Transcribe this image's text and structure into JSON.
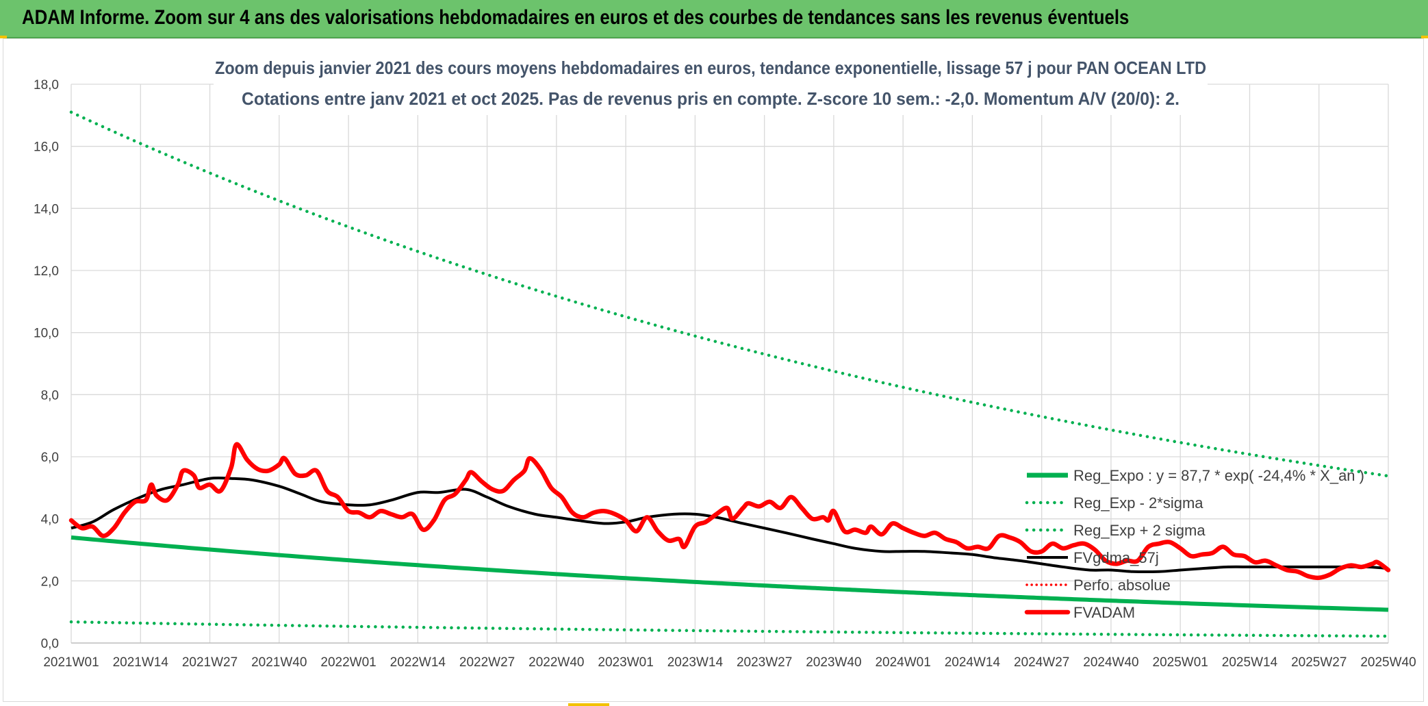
{
  "header": {
    "title": "ADAM Informe. Zoom sur 4 ans des valorisations hebdomadaires en euros et des courbes de tendances sans les revenus éventuels"
  },
  "colors": {
    "header_bg": "#6cc36c",
    "trend_green": "#00b050",
    "price_red": "#ff0000",
    "smooth_black": "#000000",
    "accent_yellow": "#f2c200"
  },
  "chart_data": {
    "type": "line",
    "title_line1": "Zoom depuis janvier 2021 des cours moyens hebdomadaires en euros, tendance exponentielle, lissage 57 j pour PAN OCEAN LTD",
    "title_line2": "Cotations entre janv 2021 et oct 2025. Pas de revenus pris en compte. Z-score 10 sem.: -2,0. Momentum A/V (20/0): 2.",
    "ylim": [
      0,
      18
    ],
    "y_ticks": [
      "0,0",
      "2,0",
      "4,0",
      "6,0",
      "8,0",
      "10,0",
      "12,0",
      "14,0",
      "16,0",
      "18,0"
    ],
    "x_ticks": [
      "2021W01",
      "2021W14",
      "2021W27",
      "2021W40",
      "2022W01",
      "2022W14",
      "2022W27",
      "2022W40",
      "2023W01",
      "2023W14",
      "2023W27",
      "2023W40",
      "2024W01",
      "2024W14",
      "2024W27",
      "2024W40",
      "2025W01",
      "2025W14",
      "2025W27",
      "2025W40"
    ],
    "x_range_weeks": [
      0,
      247
    ],
    "legend": [
      {
        "label": "Reg_Expo : y = 87,7 * exp( -24,4% *  X_an )",
        "style": "solid-green"
      },
      {
        "label": "Reg_Exp - 2*sigma",
        "style": "dotted-green"
      },
      {
        "label": "Reg_Exp + 2 sigma",
        "style": "dotted-green"
      },
      {
        "label": "FVgdma_57j",
        "style": "solid-black"
      },
      {
        "label": "Perfo. absolue",
        "style": "dotted-red"
      },
      {
        "label": "FVADAM",
        "style": "solid-red"
      }
    ],
    "series": [
      {
        "name": "Reg_Expo",
        "style": "solid-green",
        "points": [
          [
            0,
            3.4
          ],
          [
            247,
            1.07
          ]
        ]
      },
      {
        "name": "Reg_Exp - 2*sigma",
        "style": "dotted-green",
        "points": [
          [
            0,
            0.68
          ],
          [
            247,
            0.22
          ]
        ]
      },
      {
        "name": "Reg_Exp + 2 sigma",
        "style": "dotted-green",
        "points": [
          [
            0,
            17.1
          ],
          [
            247,
            5.38
          ]
        ]
      },
      {
        "name": "FVgdma_57j",
        "style": "solid-black",
        "points": [
          [
            0,
            3.7
          ],
          [
            4,
            3.9
          ],
          [
            8,
            4.3
          ],
          [
            13,
            4.7
          ],
          [
            17,
            4.95
          ],
          [
            21,
            5.1
          ],
          [
            26,
            5.3
          ],
          [
            30,
            5.3
          ],
          [
            34,
            5.25
          ],
          [
            39,
            5.05
          ],
          [
            43,
            4.8
          ],
          [
            47,
            4.55
          ],
          [
            52,
            4.45
          ],
          [
            56,
            4.45
          ],
          [
            60,
            4.6
          ],
          [
            65,
            4.85
          ],
          [
            69,
            4.85
          ],
          [
            74,
            4.95
          ],
          [
            78,
            4.7
          ],
          [
            82,
            4.4
          ],
          [
            87,
            4.15
          ],
          [
            91,
            4.05
          ],
          [
            95,
            3.95
          ],
          [
            100,
            3.85
          ],
          [
            104,
            3.9
          ],
          [
            108,
            4.05
          ],
          [
            113,
            4.15
          ],
          [
            117,
            4.15
          ],
          [
            121,
            4.05
          ],
          [
            126,
            3.85
          ],
          [
            130,
            3.7
          ],
          [
            134,
            3.55
          ],
          [
            139,
            3.35
          ],
          [
            143,
            3.2
          ],
          [
            147,
            3.05
          ],
          [
            152,
            2.95
          ],
          [
            156,
            2.95
          ],
          [
            160,
            2.95
          ],
          [
            165,
            2.9
          ],
          [
            169,
            2.85
          ],
          [
            173,
            2.75
          ],
          [
            178,
            2.65
          ],
          [
            182,
            2.55
          ],
          [
            186,
            2.45
          ],
          [
            191,
            2.35
          ],
          [
            195,
            2.35
          ],
          [
            199,
            2.3
          ],
          [
            204,
            2.3
          ],
          [
            208,
            2.35
          ],
          [
            212,
            2.4
          ],
          [
            217,
            2.45
          ],
          [
            221,
            2.45
          ],
          [
            225,
            2.45
          ],
          [
            230,
            2.45
          ],
          [
            234,
            2.45
          ],
          [
            238,
            2.45
          ],
          [
            243,
            2.45
          ],
          [
            247,
            2.4
          ]
        ]
      },
      {
        "name": "FVADAM",
        "style": "solid-red",
        "points": [
          [
            0,
            3.95
          ],
          [
            2,
            3.7
          ],
          [
            4,
            3.75
          ],
          [
            6,
            3.45
          ],
          [
            8,
            3.7
          ],
          [
            10,
            4.2
          ],
          [
            12,
            4.55
          ],
          [
            14,
            4.6
          ],
          [
            15,
            5.1
          ],
          [
            16,
            4.75
          ],
          [
            18,
            4.6
          ],
          [
            20,
            5.1
          ],
          [
            21,
            5.55
          ],
          [
            23,
            5.4
          ],
          [
            24,
            5.0
          ],
          [
            26,
            5.1
          ],
          [
            28,
            4.9
          ],
          [
            30,
            5.65
          ],
          [
            31,
            6.4
          ],
          [
            33,
            5.9
          ],
          [
            35,
            5.6
          ],
          [
            37,
            5.55
          ],
          [
            39,
            5.75
          ],
          [
            40,
            5.95
          ],
          [
            42,
            5.45
          ],
          [
            44,
            5.4
          ],
          [
            46,
            5.55
          ],
          [
            48,
            4.9
          ],
          [
            50,
            4.7
          ],
          [
            52,
            4.25
          ],
          [
            54,
            4.2
          ],
          [
            56,
            4.05
          ],
          [
            58,
            4.25
          ],
          [
            60,
            4.15
          ],
          [
            62,
            4.05
          ],
          [
            64,
            4.15
          ],
          [
            66,
            3.65
          ],
          [
            68,
            3.95
          ],
          [
            70,
            4.6
          ],
          [
            72,
            4.8
          ],
          [
            74,
            5.25
          ],
          [
            75,
            5.5
          ],
          [
            77,
            5.2
          ],
          [
            79,
            4.95
          ],
          [
            81,
            4.9
          ],
          [
            83,
            5.25
          ],
          [
            85,
            5.55
          ],
          [
            86,
            5.95
          ],
          [
            88,
            5.6
          ],
          [
            90,
            5.0
          ],
          [
            92,
            4.7
          ],
          [
            94,
            4.2
          ],
          [
            96,
            4.05
          ],
          [
            98,
            4.2
          ],
          [
            100,
            4.25
          ],
          [
            102,
            4.15
          ],
          [
            104,
            3.95
          ],
          [
            106,
            3.6
          ],
          [
            108,
            4.05
          ],
          [
            110,
            3.6
          ],
          [
            112,
            3.3
          ],
          [
            114,
            3.35
          ],
          [
            115,
            3.1
          ],
          [
            117,
            3.75
          ],
          [
            119,
            3.9
          ],
          [
            121,
            4.15
          ],
          [
            123,
            4.35
          ],
          [
            124,
            4.0
          ],
          [
            126,
            4.35
          ],
          [
            127,
            4.5
          ],
          [
            129,
            4.4
          ],
          [
            131,
            4.55
          ],
          [
            133,
            4.35
          ],
          [
            135,
            4.7
          ],
          [
            137,
            4.35
          ],
          [
            139,
            4.0
          ],
          [
            141,
            4.05
          ],
          [
            142,
            3.95
          ],
          [
            143,
            4.25
          ],
          [
            145,
            3.6
          ],
          [
            147,
            3.65
          ],
          [
            149,
            3.55
          ],
          [
            150,
            3.75
          ],
          [
            152,
            3.5
          ],
          [
            154,
            3.85
          ],
          [
            156,
            3.7
          ],
          [
            158,
            3.55
          ],
          [
            160,
            3.45
          ],
          [
            162,
            3.55
          ],
          [
            164,
            3.35
          ],
          [
            166,
            3.25
          ],
          [
            168,
            3.05
          ],
          [
            170,
            3.1
          ],
          [
            172,
            3.05
          ],
          [
            174,
            3.45
          ],
          [
            176,
            3.4
          ],
          [
            178,
            3.25
          ],
          [
            180,
            2.95
          ],
          [
            182,
            2.95
          ],
          [
            184,
            3.2
          ],
          [
            186,
            3.05
          ],
          [
            188,
            3.15
          ],
          [
            190,
            3.2
          ],
          [
            192,
            3.0
          ],
          [
            194,
            2.65
          ],
          [
            196,
            2.55
          ],
          [
            198,
            2.65
          ],
          [
            200,
            2.65
          ],
          [
            202,
            3.1
          ],
          [
            204,
            3.2
          ],
          [
            206,
            3.25
          ],
          [
            208,
            3.05
          ],
          [
            210,
            2.8
          ],
          [
            212,
            2.85
          ],
          [
            214,
            2.9
          ],
          [
            216,
            3.1
          ],
          [
            218,
            2.85
          ],
          [
            220,
            2.8
          ],
          [
            222,
            2.6
          ],
          [
            224,
            2.65
          ],
          [
            226,
            2.5
          ],
          [
            228,
            2.35
          ],
          [
            230,
            2.3
          ],
          [
            232,
            2.15
          ],
          [
            234,
            2.1
          ],
          [
            236,
            2.2
          ],
          [
            238,
            2.4
          ],
          [
            240,
            2.5
          ],
          [
            242,
            2.45
          ],
          [
            244,
            2.55
          ],
          [
            245,
            2.6
          ],
          [
            247,
            2.35
          ]
        ]
      }
    ]
  }
}
